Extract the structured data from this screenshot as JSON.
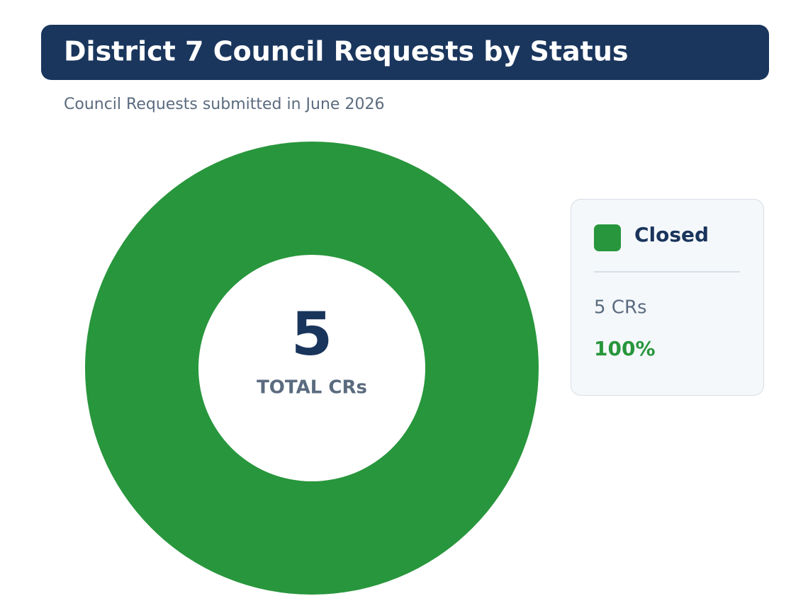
{
  "chart_data": {
    "type": "donut",
    "title": "District 7 Council Requests by Status",
    "subtitle": "Council Requests submitted in June 2026",
    "categories": [
      "Closed"
    ],
    "values": [
      5
    ],
    "value_labels": [
      "5 CRs"
    ],
    "percent_labels": [
      "100%"
    ],
    "colors": [
      "#28963c"
    ],
    "total": 5,
    "total_label": "TOTAL CRs"
  }
}
